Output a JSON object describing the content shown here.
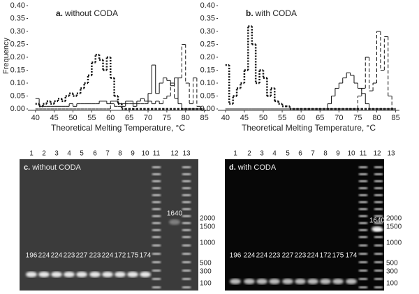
{
  "chart_data": [
    {
      "type": "step",
      "panel": "a.",
      "title": "without CODA",
      "xlabel": "Theoretical Melting Temperature,  °C",
      "ylabel": "Frequency",
      "x": [
        40,
        41,
        42,
        43,
        44,
        45,
        46,
        47,
        48,
        49,
        50,
        51,
        52,
        53,
        54,
        55,
        56,
        57,
        58,
        59,
        60,
        61,
        62,
        63,
        64,
        65,
        66,
        67,
        68,
        69,
        70,
        71,
        72,
        73,
        74,
        75,
        76,
        77,
        78,
        79,
        80,
        81,
        82,
        83,
        84
      ],
      "series": [
        {
          "style": "dotted",
          "color": "#111",
          "values": [
            0.02,
            0.01,
            0.02,
            0.03,
            0.02,
            0.03,
            0.04,
            0.03,
            0.05,
            0.06,
            0.05,
            0.06,
            0.08,
            0.1,
            0.13,
            0.18,
            0.21,
            0.19,
            0.15,
            0.2,
            0.12,
            0.05,
            0.02,
            0,
            0,
            0,
            0,
            0,
            0,
            0,
            0,
            0,
            0,
            0,
            0,
            0,
            0,
            0,
            0,
            0,
            0,
            0,
            0,
            0,
            0
          ]
        },
        {
          "style": "solid",
          "color": "#111",
          "values": [
            0.04,
            0.01,
            0.01,
            0.01,
            0.01,
            0.01,
            0.01,
            0.01,
            0.01,
            0.02,
            0.01,
            0.02,
            0.02,
            0.02,
            0.02,
            0.02,
            0.02,
            0.03,
            0.03,
            0.02,
            0.03,
            0.03,
            0.02,
            0.02,
            0.03,
            0.03,
            0.02,
            0.03,
            0.04,
            0.03,
            0.06,
            0.17,
            0.06,
            0.1,
            0.12,
            0.11,
            0.09,
            0.12,
            0.02,
            0,
            0,
            0,
            0,
            0,
            0
          ]
        },
        {
          "style": "dashed",
          "color": "#111",
          "values": [
            0,
            0,
            0,
            0,
            0,
            0,
            0,
            0,
            0,
            0,
            0,
            0,
            0,
            0,
            0,
            0,
            0,
            0,
            0,
            0,
            0.02,
            0.01,
            0.01,
            0.01,
            0.02,
            0.02,
            0.01,
            0.02,
            0.02,
            0.02,
            0.03,
            0.02,
            0.03,
            0.02,
            0.04,
            0.05,
            0.1,
            0.04,
            0.12,
            0.25,
            0.1,
            0.02,
            0.12,
            0.01,
            0
          ]
        }
      ],
      "xlim": [
        38,
        86
      ],
      "ylim": [
        0,
        0.4
      ],
      "xticks": [
        40,
        45,
        50,
        55,
        60,
        65,
        70,
        75,
        80,
        85
      ],
      "yticks": [
        {
          "value": 0,
          "label": "0.00"
        },
        {
          "value": 0.05,
          "label": "0.05"
        },
        {
          "value": 0.1,
          "label": "0.10"
        },
        {
          "value": 0.15,
          "label": "0.15"
        },
        {
          "value": 0.2,
          "label": "0.20"
        },
        {
          "value": 0.25,
          "label": "0.25"
        },
        {
          "value": 0.3,
          "label": "0.30"
        },
        {
          "value": 0.35,
          "label": "0.35"
        },
        {
          "value": 0.4,
          "label": "0.40"
        }
      ]
    },
    {
      "type": "step",
      "panel": "b.",
      "title": "with CODA",
      "xlabel": "Theoretical Melting Temperature,  °C",
      "x": [
        40,
        41,
        42,
        43,
        44,
        45,
        46,
        47,
        48,
        49,
        50,
        51,
        52,
        53,
        54,
        55,
        56,
        57,
        58,
        59,
        60,
        61,
        62,
        63,
        64,
        65,
        66,
        67,
        68,
        69,
        70,
        71,
        72,
        73,
        74,
        75,
        76,
        77,
        78,
        79,
        80,
        81,
        82,
        83,
        84
      ],
      "series": [
        {
          "style": "dotted",
          "color": "#111",
          "values": [
            0.17,
            0.02,
            0.05,
            0.08,
            0.1,
            0.15,
            0.32,
            0.25,
            0.1,
            0.15,
            0.12,
            0.05,
            0.08,
            0.03,
            0.02,
            0.01,
            0.01,
            0,
            0,
            0,
            0,
            0,
            0,
            0,
            0,
            0,
            0,
            0,
            0,
            0,
            0,
            0,
            0,
            0,
            0,
            0,
            0,
            0,
            0,
            0,
            0,
            0,
            0,
            0,
            0
          ]
        },
        {
          "style": "solid",
          "color": "#111",
          "values": [
            0,
            0,
            0,
            0,
            0,
            0,
            0,
            0,
            0,
            0,
            0,
            0,
            0,
            0,
            0,
            0,
            0,
            0,
            0,
            0,
            0,
            0,
            0,
            0,
            0,
            0,
            0,
            0.02,
            0.05,
            0.08,
            0.1,
            0.12,
            0.14,
            0.13,
            0.1,
            0.08,
            0.06,
            0.02,
            0,
            0,
            0,
            0,
            0,
            0,
            0
          ]
        },
        {
          "style": "dashed",
          "color": "#111",
          "values": [
            0,
            0,
            0,
            0,
            0,
            0,
            0,
            0,
            0,
            0,
            0,
            0,
            0,
            0,
            0,
            0,
            0,
            0,
            0,
            0,
            0,
            0,
            0,
            0,
            0,
            0,
            0,
            0,
            0,
            0,
            0,
            0,
            0,
            0,
            0,
            0.05,
            0.08,
            0.2,
            0.07,
            0.1,
            0.3,
            0.15,
            0.28,
            0.05,
            0
          ]
        }
      ],
      "xlim": [
        38,
        86
      ],
      "ylim": [
        0,
        0.4
      ],
      "xticks": [
        40,
        45,
        50,
        55,
        60,
        65,
        70,
        75,
        80,
        85
      ],
      "yticks": [
        {
          "value": 0,
          "label": "0.00"
        },
        {
          "value": 0.05,
          "label": "0.05"
        },
        {
          "value": 0.1,
          "label": "0.10"
        },
        {
          "value": 0.15,
          "label": "0.15"
        },
        {
          "value": 0.2,
          "label": "0.20"
        },
        {
          "value": 0.25,
          "label": "0.25"
        },
        {
          "value": 0.3,
          "label": "0.30"
        },
        {
          "value": 0.35,
          "label": "0.35"
        },
        {
          "value": 0.4,
          "label": "0.40"
        }
      ]
    }
  ],
  "gels": [
    {
      "panel": "c.",
      "title": "without CODA",
      "lanes": [
        "1",
        "2",
        "3",
        "4",
        "5",
        "6",
        "7",
        "8",
        "9",
        "10",
        "11",
        "12",
        "13"
      ],
      "band_labels": [
        196,
        224,
        224,
        223,
        227,
        223,
        224,
        172,
        175,
        174
      ],
      "product_label": 1640,
      "ladder_labels": [
        2000,
        1500,
        1000,
        500,
        300,
        100
      ]
    },
    {
      "panel": "d.",
      "title": "with CODA",
      "lanes": [
        "1",
        "2",
        "3",
        "4",
        "5",
        "6",
        "7",
        "8",
        "9",
        "10",
        "11",
        "12",
        "13"
      ],
      "band_labels": [
        196,
        224,
        224,
        223,
        227,
        223,
        224,
        172,
        175,
        174
      ],
      "product_label": 1640,
      "ladder_labels": [
        2000,
        1500,
        1000,
        500,
        300,
        100
      ]
    }
  ]
}
